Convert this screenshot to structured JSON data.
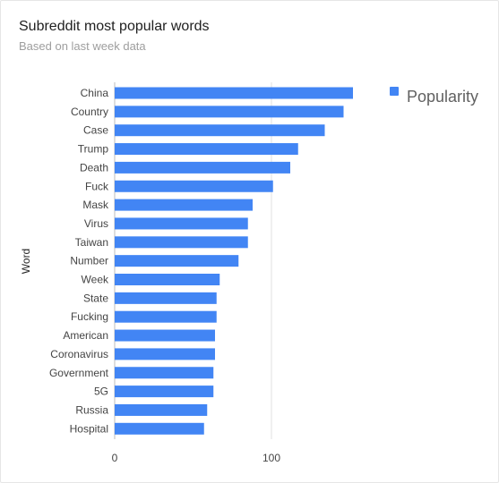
{
  "chart_data": {
    "type": "bar",
    "orientation": "horizontal",
    "title": "Subreddit most popular words",
    "subtitle": "Based on last week data",
    "ylabel": "Word",
    "xlabel": "",
    "categories": [
      "China",
      "Country",
      "Case",
      "Trump",
      "Death",
      "Fuck",
      "Mask",
      "Virus",
      "Taiwan",
      "Number",
      "Week",
      "State",
      "Fucking",
      "American",
      "Coronavirus",
      "Government",
      "5G",
      "Russia",
      "Hospital"
    ],
    "series": [
      {
        "name": "Popularity",
        "values": [
          152,
          146,
          134,
          117,
          112,
          101,
          88,
          85,
          85,
          79,
          67,
          65,
          65,
          64,
          64,
          63,
          63,
          59,
          57
        ],
        "color": "#4285f4"
      }
    ],
    "xlim": [
      0,
      170
    ],
    "xticks": [
      "0",
      "100"
    ],
    "xtick_values": [
      0,
      100
    ],
    "grid": "vertical",
    "legend_position": "top-right"
  }
}
